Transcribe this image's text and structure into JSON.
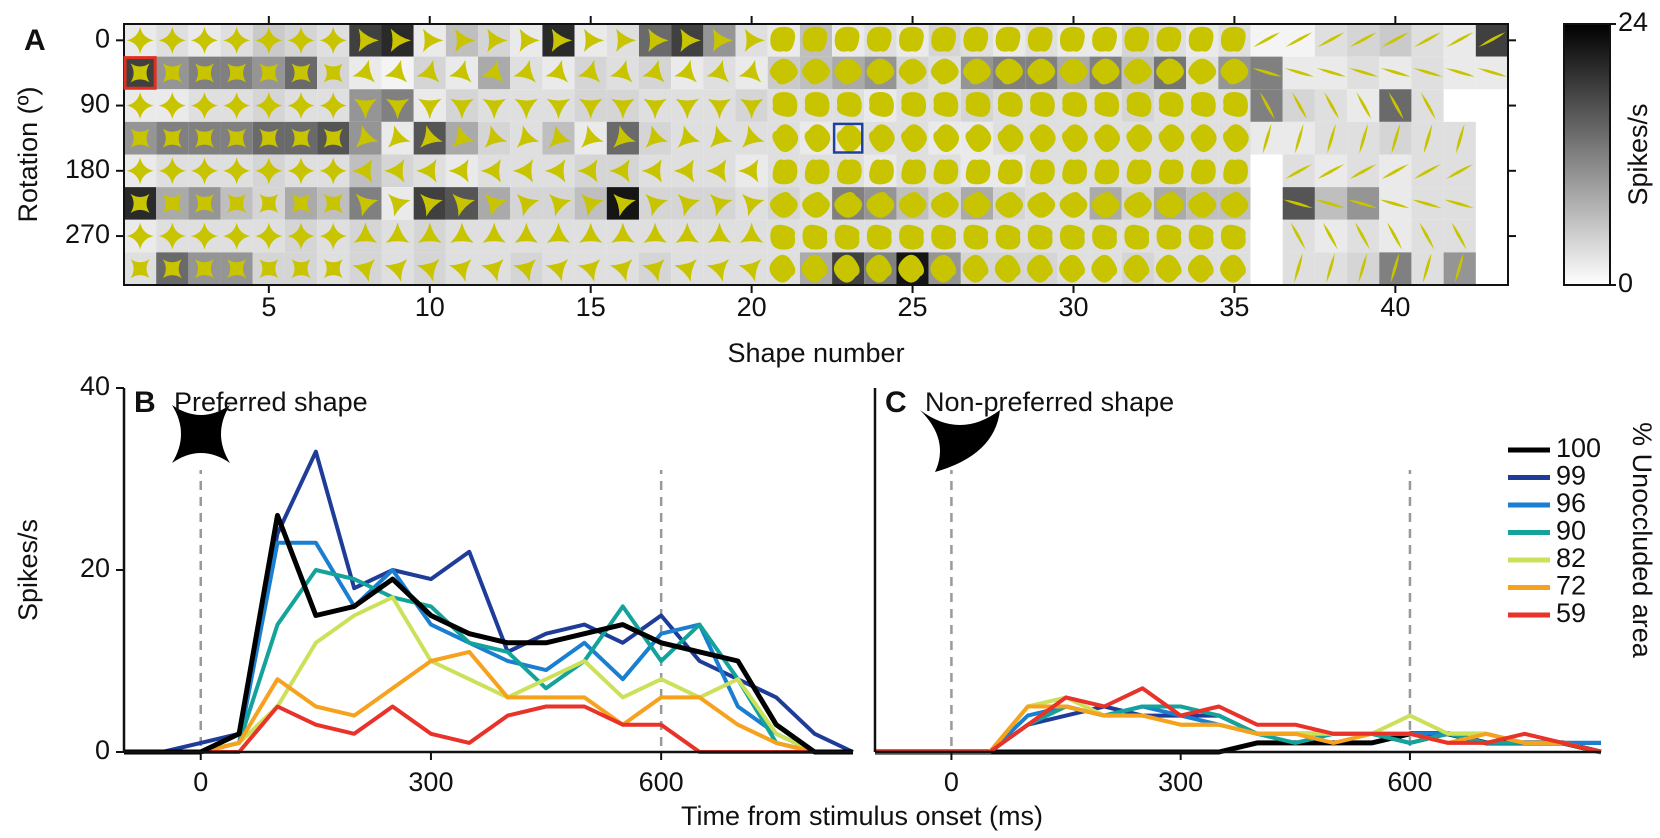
{
  "chart_data": [
    {
      "type": "heatmap",
      "label": "A",
      "xlabel": "Shape number",
      "ylabel": "Rotation (º)",
      "x": [
        1,
        2,
        3,
        4,
        5,
        6,
        7,
        8,
        9,
        10,
        11,
        12,
        13,
        14,
        15,
        16,
        17,
        18,
        19,
        20,
        21,
        22,
        23,
        24,
        25,
        26,
        27,
        28,
        29,
        30,
        31,
        32,
        33,
        34,
        35,
        36,
        37,
        38,
        39,
        40,
        41,
        42,
        43
      ],
      "y": [
        0,
        45,
        90,
        135,
        180,
        225,
        270,
        315
      ],
      "xlim": [
        0.5,
        43.5
      ],
      "xticks": [
        5,
        10,
        15,
        20,
        25,
        30,
        35,
        40
      ],
      "ylim": [
        -22.5,
        337.5
      ],
      "yticks": [
        0,
        90,
        180,
        270
      ],
      "values": [
        [
          2,
          3,
          2,
          3,
          5,
          4,
          3,
          18,
          20,
          2,
          6,
          4,
          2,
          20,
          2,
          3,
          14,
          18,
          10,
          3,
          2,
          6,
          2,
          3,
          2,
          4,
          3,
          2,
          3,
          2,
          2,
          4,
          3,
          2,
          3,
          1,
          1,
          3,
          4,
          5,
          3,
          2,
          18
        ],
        [
          18,
          10,
          12,
          12,
          10,
          14,
          4,
          2,
          1,
          4,
          2,
          8,
          3,
          2,
          4,
          3,
          4,
          2,
          3,
          2,
          5,
          6,
          8,
          10,
          4,
          3,
          10,
          12,
          12,
          8,
          12,
          6,
          13,
          3,
          10,
          12,
          2,
          2,
          3,
          2,
          3,
          2,
          2
        ],
        [
          2,
          2,
          3,
          3,
          4,
          3,
          3,
          10,
          12,
          2,
          4,
          3,
          3,
          3,
          4,
          4,
          3,
          3,
          3,
          4,
          3,
          3,
          3,
          2,
          3,
          3,
          4,
          3,
          3,
          3,
          3,
          4,
          3,
          3,
          3,
          12,
          4,
          3,
          2,
          14,
          3,
          null,
          null
        ],
        [
          10,
          12,
          12,
          12,
          14,
          14,
          16,
          10,
          2,
          16,
          8,
          4,
          3,
          6,
          2,
          14,
          4,
          3,
          3,
          3,
          3,
          2,
          2,
          3,
          3,
          2,
          2,
          3,
          3,
          3,
          3,
          3,
          3,
          3,
          3,
          2,
          2,
          3,
          3,
          4,
          3,
          3,
          null
        ],
        [
          2,
          3,
          3,
          3,
          4,
          3,
          3,
          6,
          4,
          3,
          2,
          3,
          3,
          3,
          4,
          4,
          3,
          3,
          3,
          2,
          3,
          3,
          3,
          2,
          3,
          3,
          2,
          2,
          3,
          3,
          3,
          3,
          3,
          3,
          3,
          null,
          3,
          2,
          3,
          2,
          3,
          3,
          null
        ],
        [
          20,
          8,
          10,
          6,
          4,
          8,
          6,
          12,
          2,
          18,
          16,
          8,
          4,
          4,
          6,
          22,
          4,
          4,
          4,
          3,
          4,
          3,
          12,
          10,
          6,
          4,
          8,
          4,
          3,
          3,
          8,
          4,
          8,
          6,
          6,
          null,
          16,
          6,
          10,
          2,
          3,
          3,
          null
        ],
        [
          2,
          3,
          3,
          3,
          3,
          4,
          3,
          4,
          3,
          4,
          3,
          3,
          3,
          3,
          3,
          3,
          3,
          3,
          3,
          3,
          3,
          3,
          3,
          3,
          3,
          3,
          3,
          3,
          3,
          3,
          3,
          3,
          3,
          3,
          3,
          null,
          3,
          2,
          3,
          2,
          3,
          3,
          null
        ],
        [
          3,
          14,
          10,
          10,
          4,
          4,
          3,
          4,
          3,
          4,
          3,
          3,
          4,
          3,
          3,
          3,
          4,
          3,
          3,
          3,
          3,
          8,
          18,
          12,
          22,
          10,
          4,
          4,
          4,
          3,
          3,
          4,
          3,
          3,
          3,
          null,
          3,
          3,
          4,
          12,
          3,
          10,
          null
        ]
      ],
      "colorbar": {
        "label": "Spikes/s",
        "lim": [
          0,
          24
        ],
        "ticks": [
          0,
          24
        ]
      }
    },
    {
      "type": "line",
      "label": "B",
      "title": "Preferred shape",
      "ylabel": "Spikes/s",
      "xlabel": "Time from stimulus onset (ms)",
      "x": [
        -100,
        -50,
        0,
        50,
        100,
        150,
        200,
        250,
        300,
        350,
        400,
        450,
        500,
        550,
        600,
        650,
        700,
        750,
        800,
        850
      ],
      "xlim": [
        -100,
        850
      ],
      "xticks": [
        0,
        300,
        600
      ],
      "ylim": [
        0,
        40
      ],
      "yticks": [
        0,
        20,
        40
      ],
      "markers": [
        0,
        600
      ],
      "series": [
        {
          "color": "#1f3c99",
          "values": [
            0,
            0,
            1,
            2,
            24,
            33,
            18,
            20,
            19,
            22,
            11,
            13,
            14,
            12,
            15,
            10,
            8,
            6,
            2,
            0
          ]
        },
        {
          "color": "#1a7fd0",
          "values": [
            0,
            0,
            0,
            1,
            23,
            23,
            16,
            20,
            14,
            12,
            10,
            9,
            12,
            8,
            13,
            14,
            5,
            2,
            0,
            0
          ]
        },
        {
          "color": "#13a39a",
          "values": [
            0,
            0,
            0,
            1,
            14,
            20,
            19,
            17,
            16,
            12,
            11,
            7,
            10,
            16,
            10,
            14,
            8,
            1,
            0,
            0
          ]
        },
        {
          "color": "#cde05a",
          "values": [
            0,
            0,
            0,
            1,
            5,
            12,
            15,
            17,
            10,
            8,
            6,
            8,
            10,
            6,
            8,
            6,
            8,
            2,
            0,
            0
          ]
        },
        {
          "color": "#f7a21f",
          "values": [
            0,
            0,
            0,
            1,
            8,
            5,
            4,
            7,
            10,
            11,
            6,
            6,
            6,
            3,
            6,
            6,
            3,
            1,
            0,
            0
          ]
        },
        {
          "color": "#e8322a",
          "values": [
            0,
            0,
            0,
            0,
            5,
            3,
            2,
            5,
            2,
            1,
            4,
            5,
            5,
            3,
            3,
            0,
            0,
            0,
            0,
            0
          ]
        },
        {
          "color": "#000000",
          "values": [
            0,
            0,
            0,
            2,
            26,
            15,
            16,
            19,
            15,
            13,
            12,
            12,
            13,
            14,
            12,
            11,
            10,
            3,
            0,
            0
          ]
        }
      ]
    },
    {
      "type": "line",
      "label": "C",
      "title": "Non-preferred shape",
      "legend_title": "% Unoccluded area",
      "x": [
        -100,
        -50,
        0,
        50,
        100,
        150,
        200,
        250,
        300,
        350,
        400,
        450,
        500,
        550,
        600,
        650,
        700,
        750,
        800,
        850
      ],
      "xlim": [
        -100,
        850
      ],
      "xticks": [
        0,
        300,
        600
      ],
      "ylim": [
        0,
        40
      ],
      "markers": [
        0,
        600
      ],
      "series": [
        {
          "name": "100",
          "color": "#000000",
          "values": [
            0,
            0,
            0,
            0,
            0,
            0,
            0,
            0,
            0,
            0,
            1,
            1,
            1,
            1,
            2,
            2,
            1,
            1,
            1,
            0
          ]
        },
        {
          "name": "99",
          "color": "#1f3c99",
          "values": [
            0,
            0,
            0,
            0,
            3,
            4,
            5,
            4,
            4,
            4,
            2,
            2,
            2,
            2,
            1,
            2,
            1,
            1,
            1,
            1
          ]
        },
        {
          "name": "96",
          "color": "#1a7fd0",
          "values": [
            0,
            0,
            0,
            0,
            4,
            5,
            4,
            5,
            4,
            3,
            2,
            2,
            2,
            2,
            2,
            2,
            2,
            1,
            1,
            1
          ]
        },
        {
          "name": "90",
          "color": "#13a39a",
          "values": [
            0,
            0,
            0,
            0,
            3,
            5,
            4,
            5,
            5,
            4,
            2,
            1,
            2,
            2,
            1,
            2,
            1,
            1,
            1,
            0
          ]
        },
        {
          "name": "82",
          "color": "#cde05a",
          "values": [
            0,
            0,
            0,
            0,
            5,
            6,
            4,
            4,
            3,
            3,
            2,
            2,
            2,
            2,
            4,
            2,
            2,
            1,
            1,
            0
          ]
        },
        {
          "name": "72",
          "color": "#f7a21f",
          "values": [
            0,
            0,
            0,
            0,
            5,
            5,
            4,
            4,
            3,
            3,
            2,
            2,
            1,
            2,
            2,
            1,
            2,
            1,
            1,
            0
          ]
        },
        {
          "name": "59",
          "color": "#e8322a",
          "values": [
            0,
            0,
            0,
            0,
            3,
            6,
            5,
            7,
            4,
            5,
            3,
            3,
            2,
            2,
            2,
            1,
            1,
            2,
            1,
            0
          ]
        }
      ]
    }
  ]
}
